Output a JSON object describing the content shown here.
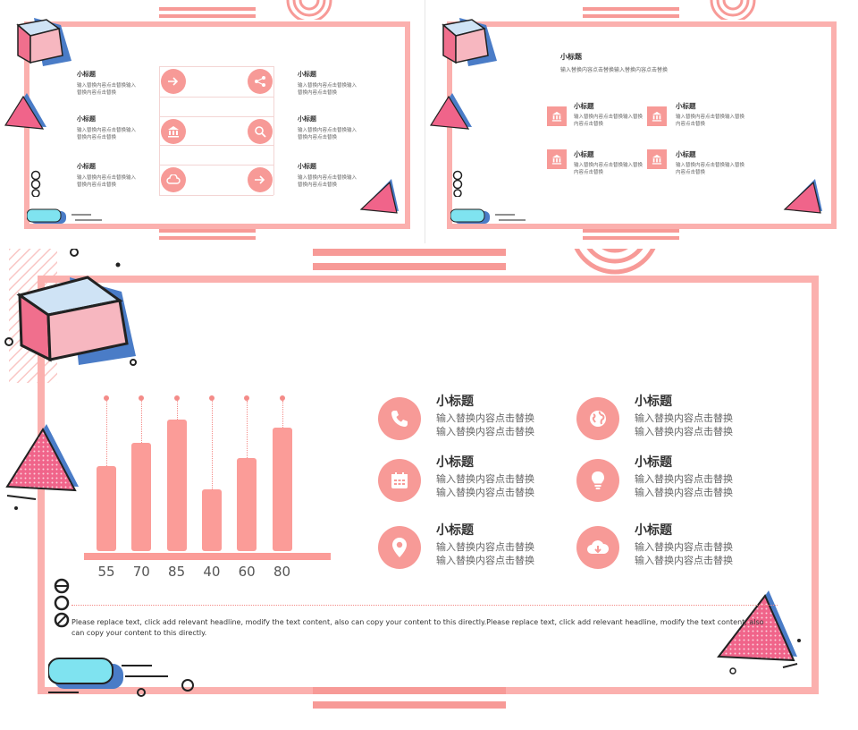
{
  "slide1": {
    "items": [
      {
        "title": "小标题",
        "text": "输入替换内容点击替换输入替换内容点击替换"
      },
      {
        "title": "小标题",
        "text": "输入替换内容点击替换输入替换内容点击替换"
      },
      {
        "title": "小标题",
        "text": "输入替换内容点击替换输入替换内容点击替换"
      },
      {
        "title": "小标题",
        "text": "输入替换内容点击替换输入替换内容点击替换"
      },
      {
        "title": "小标题",
        "text": "输入替换内容点击替换输入替换内容点击替换"
      },
      {
        "title": "小标题",
        "text": "输入替换内容点击替换输入替换内容点击替换"
      }
    ],
    "icons": [
      "arrow-right-icon",
      "share-icon",
      "bank-icon",
      "search-icon",
      "cloud-icon",
      "arrow-right-icon"
    ]
  },
  "slide2": {
    "header_title": "小标题",
    "header_text": "输入替换内容点击替换输入替换内容点击替换",
    "items": [
      {
        "title": "小标题",
        "text": "输入替换内容点击替换输入替换内容点击替换"
      },
      {
        "title": "小标题",
        "text": "输入替换内容点击替换输入替换内容点击替换"
      },
      {
        "title": "小标题",
        "text": "输入替换内容点击替换输入替换内容点击替换"
      },
      {
        "title": "小标题",
        "text": "输入替换内容点击替换输入替换内容点击替换"
      }
    ],
    "icons": [
      "bank-icon",
      "bank-icon",
      "bank-icon",
      "bank-icon"
    ]
  },
  "slide3": {
    "items": [
      {
        "title": "小标题",
        "line1": "输入替换内容点击替换",
        "line2": "输入替换内容点击替换"
      },
      {
        "title": "小标题",
        "line1": "输入替换内容点击替换",
        "line2": "输入替换内容点击替换"
      },
      {
        "title": "小标题",
        "line1": "输入替换内容点击替换",
        "line2": "输入替换内容点击替换"
      },
      {
        "title": "小标题",
        "line1": "输入替换内容点击替换",
        "line2": "输入替换内容点击替换"
      },
      {
        "title": "小标题",
        "line1": "输入替换内容点击替换",
        "line2": "输入替换内容点击替换"
      },
      {
        "title": "小标题",
        "line1": "输入替换内容点击替换",
        "line2": "输入替换内容点击替换"
      }
    ],
    "icons": [
      "phone-icon",
      "globe-icon",
      "calendar-icon",
      "lightbulb-icon",
      "map-pin-icon",
      "cloud-download-icon"
    ],
    "footer_text": "Please replace text, click add relevant headline, modify the text content, also can copy your content to this directly.Please replace text, click add relevant headline, modify the text content, also can copy your content to this directly.",
    "colors": {
      "accent": "#f79a97",
      "frame": "#fbb0ae",
      "cube_blue": "#4a7cc7",
      "cyan": "#7fe3f0"
    }
  },
  "chart_data": {
    "type": "bar",
    "categories": [
      "",
      "",
      "",
      "",
      "",
      ""
    ],
    "values": [
      55,
      70,
      85,
      40,
      60,
      80
    ],
    "value_labels": [
      "55",
      "70",
      "85",
      "40",
      "60",
      "80"
    ],
    "title": "",
    "xlabel": "",
    "ylabel": "",
    "ylim": [
      0,
      100
    ],
    "grid": false
  }
}
